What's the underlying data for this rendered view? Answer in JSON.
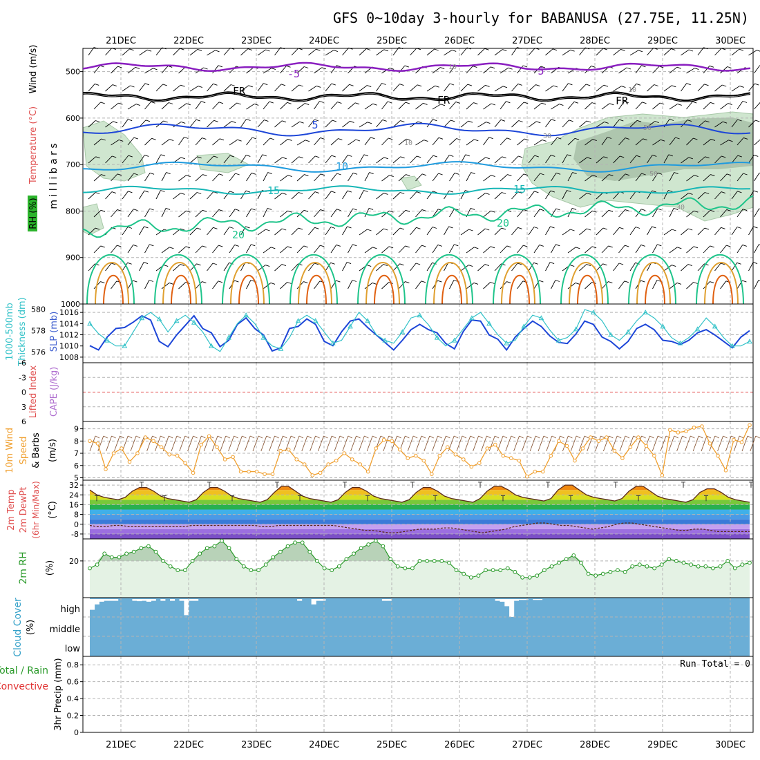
{
  "title": "GFS 0~10day 3-hourly for BABANUSA (27.75E, 11.25N)",
  "dates": [
    "21DEC",
    "22DEC",
    "23DEC",
    "24DEC",
    "25DEC",
    "26DEC",
    "27DEC",
    "28DEC",
    "29DEC",
    "30DEC"
  ],
  "colors": {
    "grid": "#b4b4b4",
    "t_minus5": "#8a1fc0",
    "t_freeze": "#000000",
    "t_5": "#1d46d8",
    "t_10": "#1f9bde",
    "t_15": "#16b6b6",
    "t_20": "#1ec48a",
    "t_25": "#e0a030",
    "t_30": "#e06010",
    "rh_fill": "#cfe6cf",
    "rh_fill_dark": "#9fb89f",
    "thickness": "#1d46d8",
    "slp": "#33c2c8",
    "wind10": "#f0a030",
    "rh2m": "#2a9a2a",
    "cloud": "#6baed6",
    "li_zero": "#e04040"
  },
  "panels": {
    "upper": {
      "title": "Wind (m/s)",
      "temp_label": "Temperature (°C)",
      "rh_label": "RH (%)",
      "axis_label": "millibars",
      "yticks": [
        "500",
        "600",
        "700",
        "800",
        "900",
        "1000"
      ],
      "contour_labels": [
        {
          "text": "-5",
          "kind": "t_minus5"
        },
        {
          "text": "5",
          "kind": "t_minus5"
        },
        {
          "text": "FR",
          "kind": "t_freeze"
        },
        {
          "text": "FR",
          "kind": "t_freeze"
        },
        {
          "text": "FR",
          "kind": "t_freeze"
        },
        {
          "text": "5",
          "kind": "t_5"
        },
        {
          "text": "10",
          "kind": "t_10"
        },
        {
          "text": "15",
          "kind": "t_15"
        },
        {
          "text": "15",
          "kind": "t_15"
        },
        {
          "text": "20",
          "kind": "t_20"
        },
        {
          "text": "20",
          "kind": "t_20"
        },
        {
          "text": "10",
          "kind": "rh"
        },
        {
          "text": "10",
          "kind": "rh"
        },
        {
          "text": "30",
          "kind": "rh"
        },
        {
          "text": "50",
          "kind": "rh"
        },
        {
          "text": "50",
          "kind": "rh"
        },
        {
          "text": "30",
          "kind": "rh"
        },
        {
          "text": "10",
          "kind": "rh"
        }
      ],
      "levels": {
        "t_minus5": 490,
        "t_freeze": 553,
        "t_5": 625,
        "t_10": 705,
        "t_15": 755,
        "t_20": 840
      }
    },
    "thickness": {
      "label1": "1000-500mb",
      "label2": "Thickness (dm)",
      "label3": "SLP (mb)",
      "left_ticks": [
        "580",
        "578",
        "576"
      ],
      "right_ticks": [
        "1016",
        "1014",
        "1012",
        "1010",
        "1008"
      ],
      "thickness_range": [
        575,
        580.5
      ],
      "slp_range": [
        1007,
        1017.5
      ]
    },
    "stability": {
      "label1": "Lifted Index",
      "label2": "CAPE (J/kg)",
      "yticks": [
        "-6",
        "-3",
        "0",
        "3",
        "6"
      ]
    },
    "wind10m": {
      "label1": "10m Wind",
      "label2": "Speed",
      "label3": "& Barbs",
      "units": "(m/s)",
      "yticks": [
        "9",
        "8",
        "7",
        "6",
        "5"
      ],
      "range": [
        4.8,
        9.6
      ]
    },
    "temp2m": {
      "label1": "2m Temp",
      "label2": "2m DewPt",
      "label3": "(6hr Min/Max)",
      "units": "(°C)",
      "yticks": [
        "32",
        "24",
        "16",
        "8",
        "0",
        "-8"
      ],
      "range": [
        -12,
        36
      ]
    },
    "rh2m": {
      "label": "2m RH",
      "units": "(%)",
      "yticks": [
        "20"
      ],
      "range": [
        0,
        32
      ]
    },
    "cloud": {
      "label": "Cloud Cover",
      "units": "(%)",
      "levels": [
        "high",
        "middle",
        "low"
      ],
      "high_cover": [
        0.6,
        0.3,
        0.15,
        0.1,
        0.1,
        0.1,
        0,
        0,
        0,
        0.1,
        0.12,
        0.1,
        0.15,
        0.1,
        0,
        0.1,
        0,
        0.1,
        0,
        0.1,
        0.9,
        0.1,
        0.1,
        0,
        0,
        0,
        0,
        0,
        0,
        0,
        0,
        0,
        0,
        0,
        0,
        0,
        0,
        0,
        0,
        0,
        0,
        0,
        0,
        0,
        0.1,
        0,
        0,
        0.3,
        0.1,
        0.1,
        0,
        0,
        0,
        0,
        0,
        0,
        0,
        0,
        0,
        0,
        0,
        0,
        0.1,
        0.1,
        0,
        0,
        0,
        0,
        0,
        0,
        0,
        0,
        0,
        0,
        0,
        0,
        0,
        0,
        0,
        0,
        0,
        0,
        0,
        0,
        0,
        0,
        0.1,
        0.15,
        0.4,
        1.0,
        0.1,
        0.05,
        0.05,
        0,
        0.05,
        0.05,
        0,
        0,
        0,
        0,
        0,
        0,
        0,
        0,
        0,
        0,
        0,
        0,
        0,
        0,
        0,
        0,
        0,
        0,
        0,
        0,
        0,
        0,
        0,
        0,
        0,
        0,
        0,
        0,
        0,
        0,
        0,
        0,
        0,
        0,
        0,
        0,
        0,
        0,
        0,
        0,
        0,
        0,
        0,
        0
      ]
    },
    "precip": {
      "label1": "Total / Rain",
      "label2": "Convective",
      "label3": "3hr Precip (mm)",
      "yticks": [
        "0.8",
        "0.6",
        "0.4",
        "0.2",
        "0"
      ],
      "run_total": "Run Total = 0"
    }
  },
  "chart_data": [
    {
      "type": "line",
      "title": "1000-500mb Thickness (dm) / SLP (mb)",
      "series": [
        {
          "name": "Thickness (dm)",
          "values": [
            576.6,
            576.2,
            577.4,
            578.2,
            578.3,
            578.8,
            579.4,
            579.0,
            577.0,
            576.5,
            577.6,
            578.5,
            579.4,
            578.2,
            577.8,
            576.5,
            577.1,
            578.6,
            579.2,
            578.2,
            577.6,
            576.1,
            576.4,
            578.2,
            578.4,
            579.1,
            578.6,
            577.0,
            576.6,
            577.9,
            578.9,
            579.1,
            578.3,
            577.6,
            576.9,
            576.2,
            577.1,
            578.1,
            578.6,
            578.1,
            577.8,
            576.8,
            576.3,
            577.9,
            579.0,
            578.9,
            577.6,
            577.2,
            576.2,
            577.4,
            578.2,
            578.9,
            578.4,
            577.5,
            576.9,
            576.8,
            577.7,
            578.9,
            578.6,
            577.4,
            577.0,
            576.3,
            577.0,
            578.2,
            578.6,
            578.1,
            577.1,
            577.0,
            576.7,
            577.1,
            577.8,
            578.1,
            577.6,
            577.0,
            576.4,
            577.4,
            578.0
          ]
        },
        {
          "name": "SLP (mb)",
          "values": [
            1014.0,
            1012.2,
            1011.0,
            1010.0,
            1010.0,
            1012.5,
            1015.0,
            1016.0,
            1014.8,
            1012.5,
            1014.5,
            1015.5,
            1014.2,
            1012.5,
            1010.0,
            1009.0,
            1011.5,
            1014.0,
            1015.5,
            1014.0,
            1011.5,
            1010.0,
            1009.5,
            1011.5,
            1014.5,
            1015.5,
            1014.5,
            1012.5,
            1010.5,
            1011.0,
            1013.5,
            1016.0,
            1014.5,
            1012.0,
            1011.0,
            1010.5,
            1012.5,
            1015.0,
            1015.5,
            1013.8,
            1011.5,
            1010.0,
            1011.0,
            1013.0,
            1015.0,
            1016.0,
            1014.0,
            1012.0,
            1010.5,
            1011.0,
            1013.5,
            1015.5,
            1015.0,
            1012.8,
            1011.0,
            1011.5,
            1013.0,
            1016.5,
            1016.0,
            1014.5,
            1012.0,
            1011.0,
            1012.5,
            1014.5,
            1016.0,
            1015.0,
            1013.5,
            1011.5,
            1010.5,
            1011.5,
            1013.0,
            1015.0,
            1013.5,
            1011.5,
            1010.0,
            1010.0,
            1010.8
          ]
        }
      ],
      "ylabel_left": "1000-500mb Thickness (dm)",
      "ylabel_right": "SLP (mb)",
      "ylim_left": [
        575,
        580.5
      ],
      "ylim_right": [
        1007,
        1017.5
      ]
    },
    {
      "type": "line",
      "title": "10m Wind Speed & Barbs (m/s)",
      "series": [
        {
          "name": "10m Wind Speed",
          "values": [
            8.0,
            7.8,
            5.7,
            7.0,
            7.4,
            6.3,
            7.0,
            8.3,
            8.0,
            7.5,
            6.9,
            6.8,
            6.2,
            5.4,
            7.7,
            8.4,
            7.5,
            6.5,
            6.7,
            5.5,
            5.5,
            5.5,
            5.3,
            5.3,
            7.2,
            7.3,
            6.5,
            6.1,
            5.2,
            5.4,
            6.1,
            6.4,
            7.0,
            6.5,
            6.1,
            5.5,
            7.4,
            8.1,
            8.0,
            7.3,
            6.6,
            6.8,
            6.4,
            5.3,
            6.8,
            7.5,
            6.9,
            6.5,
            5.9,
            6.2,
            7.4,
            7.7,
            6.8,
            6.6,
            6.4,
            5.1,
            5.5,
            5.5,
            6.8,
            8.0,
            7.6,
            6.4,
            7.4,
            8.3,
            8.0,
            8.3,
            7.2,
            6.6,
            7.5,
            8.3,
            7.6,
            6.8,
            5.2,
            8.9,
            8.7,
            8.8,
            9.1,
            9.2,
            7.8,
            6.8,
            5.6,
            8.1,
            7.9,
            9.3
          ]
        }
      ],
      "ylabel": "Speed (m/s)",
      "ylim": [
        4.8,
        9.6
      ]
    },
    {
      "type": "area",
      "title": "2m Temp / 2m DewPt (°C)",
      "series": [
        {
          "name": "2m Temp",
          "values": [
            28,
            24,
            22,
            21,
            20,
            22,
            27,
            30,
            30,
            27,
            23,
            21,
            20,
            19,
            18,
            20,
            26,
            30,
            30,
            27,
            23,
            21,
            20,
            19,
            18,
            20,
            26,
            31,
            31,
            27,
            23,
            21,
            20,
            19,
            18,
            20,
            26,
            30,
            30,
            27,
            23,
            21,
            20,
            19,
            18,
            20,
            26,
            30,
            30,
            27,
            23,
            21,
            20,
            19,
            18,
            21,
            27,
            31,
            31,
            28,
            24,
            22,
            21,
            20,
            19,
            21,
            28,
            32,
            32,
            28,
            24,
            22,
            21,
            20,
            19,
            21,
            27,
            31,
            31,
            27,
            23,
            21,
            20,
            19,
            18,
            20,
            26,
            29,
            29,
            26,
            22,
            20,
            19,
            18
          ]
        },
        {
          "name": "2m DewPt",
          "values": [
            -1,
            -2,
            -2,
            -1,
            -1,
            -2,
            -2,
            -2,
            -2,
            -2,
            -2,
            -2,
            -2,
            -1,
            -1,
            -1,
            -1,
            -1,
            -1,
            -1,
            -1,
            -1,
            -2,
            -2,
            -1,
            -1,
            -1,
            -1,
            -1,
            -1,
            -1,
            -1,
            -2,
            -3,
            -4,
            -5,
            -5,
            -6,
            -7,
            -7,
            -6,
            -5,
            -4,
            -4,
            -4,
            -3,
            -3,
            -4,
            -5,
            -6,
            -7,
            -6,
            -5,
            -4,
            -2,
            -1,
            0,
            1,
            1,
            0,
            -1,
            -1,
            -2,
            -3,
            -4,
            -3,
            -2,
            0,
            1,
            1,
            0,
            -1,
            -2,
            -3,
            -4,
            -5,
            -5,
            -4,
            -4,
            -5,
            -6,
            -6,
            -6,
            -6,
            -6
          ]
        }
      ],
      "ylabel": "(°C)",
      "ylim": [
        -12,
        36
      ]
    },
    {
      "type": "line",
      "title": "2m RH (%)",
      "series": [
        {
          "name": "2m RH",
          "values": [
            16,
            18,
            24,
            22,
            22,
            24,
            25,
            27,
            28,
            25,
            20,
            17,
            15,
            15,
            20,
            24,
            27,
            28,
            31,
            27,
            21,
            17,
            15,
            15,
            18,
            22,
            25,
            28,
            30,
            30,
            25,
            20,
            16,
            15,
            17,
            21,
            24,
            27,
            29,
            31,
            28,
            21,
            17,
            16,
            16,
            20,
            20,
            20,
            20,
            19,
            15,
            13,
            11,
            12,
            15,
            15,
            15,
            16,
            14,
            11,
            11,
            12,
            15,
            17,
            19,
            21,
            23,
            19,
            13,
            12,
            13,
            14,
            15,
            14,
            17,
            18,
            17,
            16,
            18,
            21,
            20,
            19,
            18,
            17,
            17,
            16,
            17,
            20,
            16,
            18,
            19
          ]
        }
      ],
      "ylabel": "(%)",
      "ylim": [
        0,
        32
      ]
    },
    {
      "type": "bar",
      "title": "3hr Precip (mm)",
      "values": [],
      "ylim": [
        0,
        0.9
      ],
      "ylabel": "3hr Precip (mm)"
    }
  ]
}
